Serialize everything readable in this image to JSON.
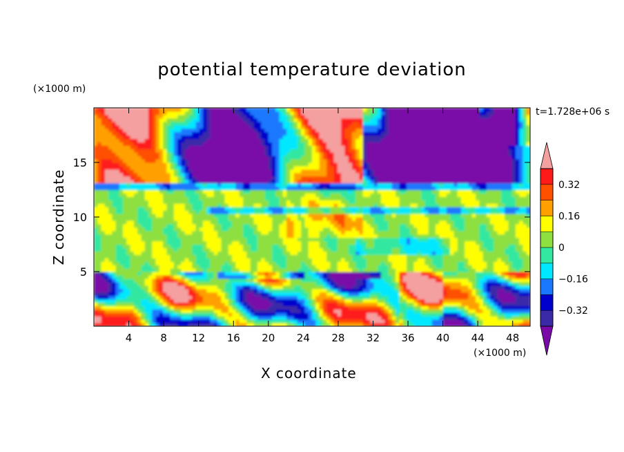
{
  "chart_data": {
    "type": "heatmap",
    "title": "potential temperature deviation",
    "xlabel": "X coordinate",
    "ylabel": "Z coordinate",
    "x_unit_label": "(×1000 m)",
    "y_unit_label": "(×1000 m)",
    "time_label": "t=1.728e+06 s",
    "xlim": [
      0,
      50
    ],
    "ylim": [
      0,
      20
    ],
    "x_ticks": [
      4,
      8,
      12,
      16,
      20,
      24,
      28,
      32,
      36,
      40,
      44,
      48
    ],
    "y_ticks": [
      5,
      10,
      15
    ],
    "colorbar": {
      "levels": [
        -0.4,
        -0.32,
        -0.24,
        -0.16,
        -0.08,
        0,
        0.08,
        0.16,
        0.24,
        0.32,
        0.4
      ],
      "tick_values": [
        0.32,
        0.16,
        0,
        -0.16,
        -0.32
      ],
      "tick_labels": [
        "0.32",
        "0.16",
        "0",
        "−0.16",
        "−0.32"
      ],
      "colors_low_to_high": [
        "#7a0aa8",
        "#3a2aa8",
        "#0000cc",
        "#1a78ff",
        "#00e8ff",
        "#33e8a0",
        "#8ee040",
        "#ffff00",
        "#ffa000",
        "#ff5000",
        "#ff1a1a",
        "#f4a0a0"
      ],
      "extend": "both"
    },
    "regions": [
      {
        "band": "upper (z 13-20)",
        "description": "alternating warm (pink) and cold (purple) anomalies"
      },
      {
        "band": "middle (z 5-13)",
        "description": "near-zero deviation, green with thin blue layers"
      },
      {
        "band": "lower (z 0-5)",
        "description": "turbulent mixture of warm and cold cells"
      }
    ]
  }
}
